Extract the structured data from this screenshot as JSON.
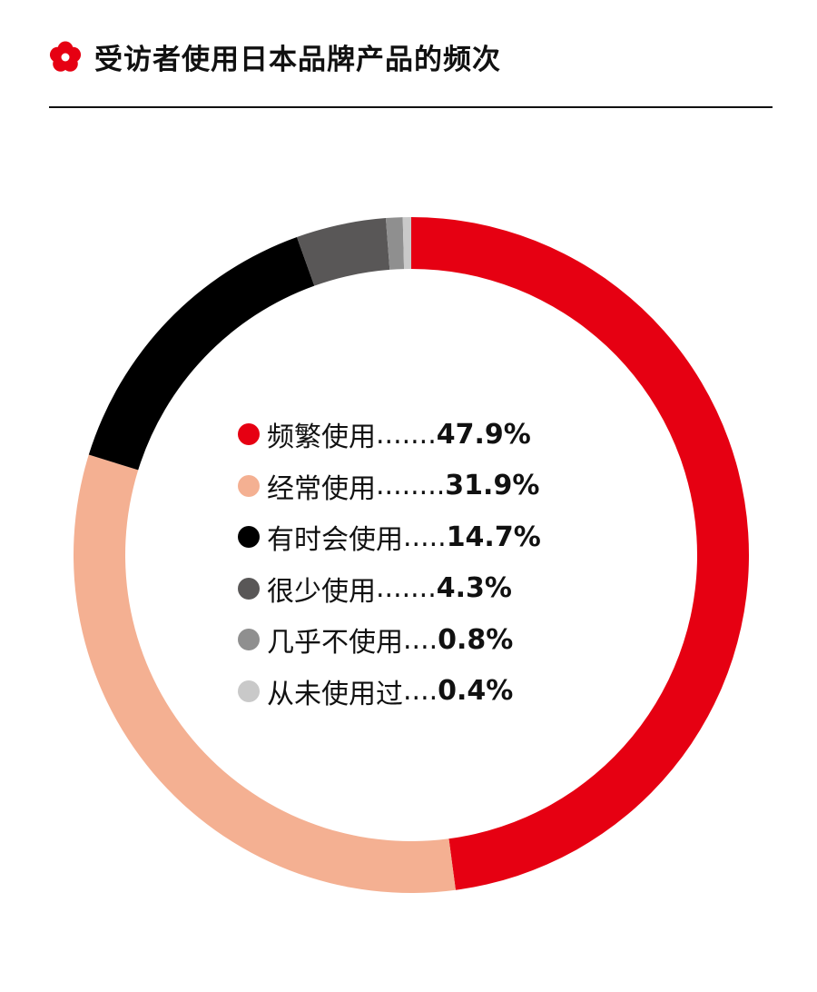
{
  "header": {
    "title": "受访者使用日本品牌产品的频次",
    "logo": "sakura-flower-icon",
    "logo_color": "#e60012"
  },
  "chart_data": {
    "type": "pie",
    "variant": "donut",
    "start": "top",
    "direction": "clockwise",
    "legend_placement": "center",
    "categories": [
      "频繁使用",
      "经常使用",
      "有时会使用",
      "很少使用",
      "几乎不使用",
      "从未使用过"
    ],
    "values": [
      47.9,
      31.9,
      14.7,
      4.3,
      0.8,
      0.4
    ],
    "value_labels": [
      "47.9%",
      "31.9%",
      "14.7%",
      "4.3%",
      "0.8%",
      "0.4%"
    ],
    "leaders": [
      " .......",
      "........",
      " .....",
      " .......",
      " ....",
      " ...."
    ],
    "colors": [
      "#e60012",
      "#f4b092",
      "#000000",
      "#595757",
      "#8f8f8f",
      "#c9c9c9"
    ]
  }
}
